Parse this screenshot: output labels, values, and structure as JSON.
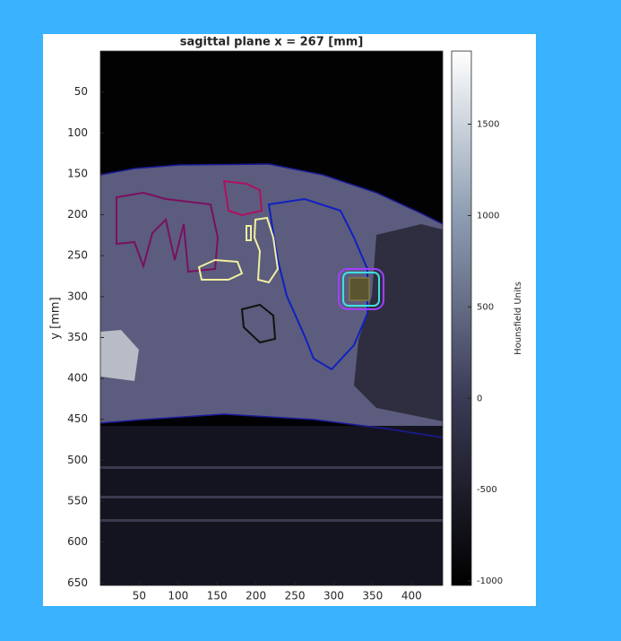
{
  "chart_data": {
    "type": "image",
    "title": "sagittal plane x = 267 [mm]",
    "ylabel": "y [mm]",
    "xlim": [
      0,
      440
    ],
    "xticks": [
      50,
      100,
      150,
      200,
      250,
      300,
      350,
      400
    ],
    "ylim": [
      0,
      653
    ],
    "yticks": [
      50,
      100,
      150,
      200,
      250,
      300,
      350,
      400,
      450,
      500,
      550,
      600,
      650
    ],
    "colorbar": {
      "label": "Hounsfield Units",
      "lim": [
        -1024,
        1900
      ],
      "ticks": [
        -1000,
        -500,
        0,
        500,
        1000,
        1500
      ]
    }
  }
}
